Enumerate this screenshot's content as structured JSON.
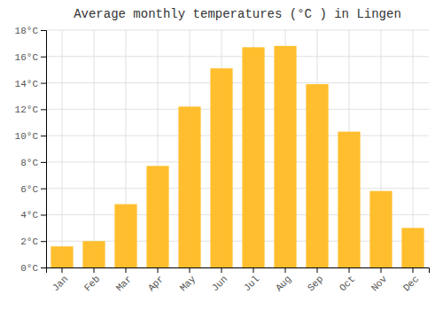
{
  "chart_data": {
    "type": "bar",
    "title": "Average monthly temperatures (°C ) in Lingen",
    "categories": [
      "Jan",
      "Feb",
      "Mar",
      "Apr",
      "May",
      "Jun",
      "Jul",
      "Aug",
      "Sep",
      "Oct",
      "Nov",
      "Dec"
    ],
    "values": [
      1.6,
      2.0,
      4.8,
      7.7,
      12.2,
      15.1,
      16.7,
      16.8,
      13.9,
      10.3,
      5.8,
      3.0
    ],
    "color": "#FFBE2D",
    "ylim": [
      0,
      18
    ],
    "yticks": [
      {
        "value": 0,
        "label": "0°C"
      },
      {
        "value": 2,
        "label": "2°C"
      },
      {
        "value": 4,
        "label": "4°C"
      },
      {
        "value": 6,
        "label": "6°C"
      },
      {
        "value": 8,
        "label": "8°C"
      },
      {
        "value": 10,
        "label": "10°C"
      },
      {
        "value": 12,
        "label": "12°C"
      },
      {
        "value": 14,
        "label": "14°C"
      },
      {
        "value": 16,
        "label": "16°C"
      },
      {
        "value": 18,
        "label": "18°C"
      }
    ],
    "grid": true
  }
}
